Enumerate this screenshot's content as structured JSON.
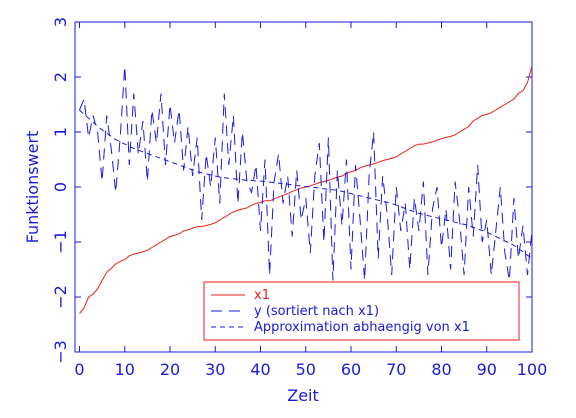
{
  "chart_data": {
    "type": "line",
    "title": "",
    "xlabel": "Zeit",
    "ylabel": "Funktionswert",
    "xlim": [
      -1,
      100
    ],
    "ylim": [
      -3,
      3
    ],
    "xticks": [
      0,
      10,
      20,
      30,
      40,
      50,
      60,
      70,
      80,
      90,
      100
    ],
    "yticks": [
      -3,
      -2,
      -1,
      0,
      1,
      2,
      3
    ],
    "grid": false,
    "legend_position": "bottom-right",
    "colors": {
      "axes": "#1a1adc",
      "x1": "#e8201a",
      "y": "#1a1adc",
      "approx": "#1a1adc"
    },
    "x": [
      0,
      1,
      2,
      3,
      4,
      5,
      6,
      7,
      8,
      9,
      10,
      11,
      12,
      13,
      14,
      15,
      16,
      17,
      18,
      19,
      20,
      21,
      22,
      23,
      24,
      25,
      26,
      27,
      28,
      29,
      30,
      31,
      32,
      33,
      34,
      35,
      36,
      37,
      38,
      39,
      40,
      41,
      42,
      43,
      44,
      45,
      46,
      47,
      48,
      49,
      50,
      51,
      52,
      53,
      54,
      55,
      56,
      57,
      58,
      59,
      60,
      61,
      62,
      63,
      64,
      65,
      66,
      67,
      68,
      69,
      70,
      71,
      72,
      73,
      74,
      75,
      76,
      77,
      78,
      79,
      80,
      81,
      82,
      83,
      84,
      85,
      86,
      87,
      88,
      89,
      90,
      91,
      92,
      93,
      94,
      95,
      96,
      97,
      98,
      99,
      100
    ],
    "series": [
      {
        "name": "x1",
        "style": "solid",
        "values": [
          -2.3,
          -2.2,
          -2.0,
          -1.95,
          -1.85,
          -1.7,
          -1.55,
          -1.48,
          -1.4,
          -1.35,
          -1.32,
          -1.25,
          -1.22,
          -1.2,
          -1.18,
          -1.15,
          -1.1,
          -1.05,
          -1.0,
          -0.95,
          -0.9,
          -0.88,
          -0.85,
          -0.8,
          -0.78,
          -0.75,
          -0.72,
          -0.72,
          -0.7,
          -0.68,
          -0.65,
          -0.6,
          -0.55,
          -0.5,
          -0.45,
          -0.42,
          -0.4,
          -0.38,
          -0.33,
          -0.3,
          -0.28,
          -0.25,
          -0.25,
          -0.22,
          -0.18,
          -0.15,
          -0.12,
          -0.08,
          -0.05,
          -0.02,
          0.0,
          0.02,
          0.05,
          0.08,
          0.1,
          0.12,
          0.15,
          0.18,
          0.2,
          0.25,
          0.28,
          0.3,
          0.35,
          0.38,
          0.4,
          0.42,
          0.45,
          0.48,
          0.5,
          0.52,
          0.55,
          0.6,
          0.65,
          0.7,
          0.75,
          0.78,
          0.78,
          0.8,
          0.82,
          0.85,
          0.88,
          0.9,
          0.92,
          0.95,
          1.0,
          1.05,
          1.1,
          1.2,
          1.25,
          1.3,
          1.32,
          1.35,
          1.4,
          1.45,
          1.5,
          1.55,
          1.6,
          1.7,
          1.75,
          1.9,
          2.2
        ]
      },
      {
        "name": "y (sortiert nach x1)",
        "style": "dashed",
        "values": [
          1.4,
          1.6,
          0.9,
          1.3,
          1.0,
          0.1,
          1.3,
          0.7,
          -0.1,
          0.9,
          2.2,
          0.4,
          1.7,
          0.6,
          1.2,
          0.1,
          1.4,
          0.8,
          1.7,
          0.4,
          1.5,
          0.8,
          1.4,
          0.3,
          1.1,
          0.2,
          0.9,
          -0.6,
          0.6,
          0.0,
          0.9,
          -0.3,
          1.7,
          0.4,
          1.3,
          -0.3,
          1.0,
          0.1,
          -0.1,
          0.4,
          -0.8,
          0.5,
          -1.6,
          0.1,
          0.6,
          -0.3,
          0.2,
          -0.9,
          0.3,
          -0.6,
          -0.2,
          -1.2,
          0.2,
          0.8,
          -1.0,
          0.9,
          -1.7,
          0.3,
          -0.7,
          0.5,
          -1.5,
          0.4,
          -0.6,
          -1.7,
          0.2,
          1.0,
          -1.3,
          0.2,
          -0.5,
          -1.6,
          0.0,
          -0.8,
          -0.3,
          -1.5,
          -0.2,
          -0.8,
          0.1,
          -1.6,
          -0.4,
          0.0,
          -1.1,
          -0.4,
          -1.5,
          0.1,
          -0.6,
          -1.6,
          0.0,
          -0.9,
          0.4,
          -1.0,
          -0.6,
          -1.6,
          -0.8,
          0.0,
          -1.2,
          -1.7,
          -0.2,
          -1.3,
          -0.7,
          -1.6,
          -0.8
        ]
      },
      {
        "name": "Approximation abhaengig von x1",
        "style": "short-dashed",
        "values": [
          1.4,
          1.32,
          1.25,
          1.18,
          1.1,
          1.04,
          0.98,
          0.92,
          0.86,
          0.82,
          0.78,
          0.74,
          0.7,
          0.67,
          0.64,
          0.61,
          0.58,
          0.55,
          0.52,
          0.49,
          0.46,
          0.43,
          0.4,
          0.37,
          0.34,
          0.31,
          0.28,
          0.26,
          0.24,
          0.22,
          0.2,
          0.18,
          0.17,
          0.16,
          0.15,
          0.14,
          0.13,
          0.12,
          0.12,
          0.11,
          0.11,
          0.1,
          0.09,
          0.08,
          0.07,
          0.06,
          0.05,
          0.04,
          0.03,
          0.02,
          0.01,
          0.0,
          -0.01,
          -0.02,
          -0.03,
          -0.04,
          -0.05,
          -0.06,
          -0.08,
          -0.1,
          -0.12,
          -0.14,
          -0.16,
          -0.18,
          -0.2,
          -0.22,
          -0.24,
          -0.26,
          -0.28,
          -0.3,
          -0.33,
          -0.36,
          -0.39,
          -0.42,
          -0.45,
          -0.48,
          -0.5,
          -0.52,
          -0.54,
          -0.56,
          -0.58,
          -0.6,
          -0.62,
          -0.64,
          -0.66,
          -0.68,
          -0.7,
          -0.73,
          -0.76,
          -0.79,
          -0.82,
          -0.86,
          -0.9,
          -0.94,
          -0.98,
          -1.02,
          -1.06,
          -1.12,
          -1.18,
          -1.24,
          -1.3
        ]
      }
    ]
  }
}
